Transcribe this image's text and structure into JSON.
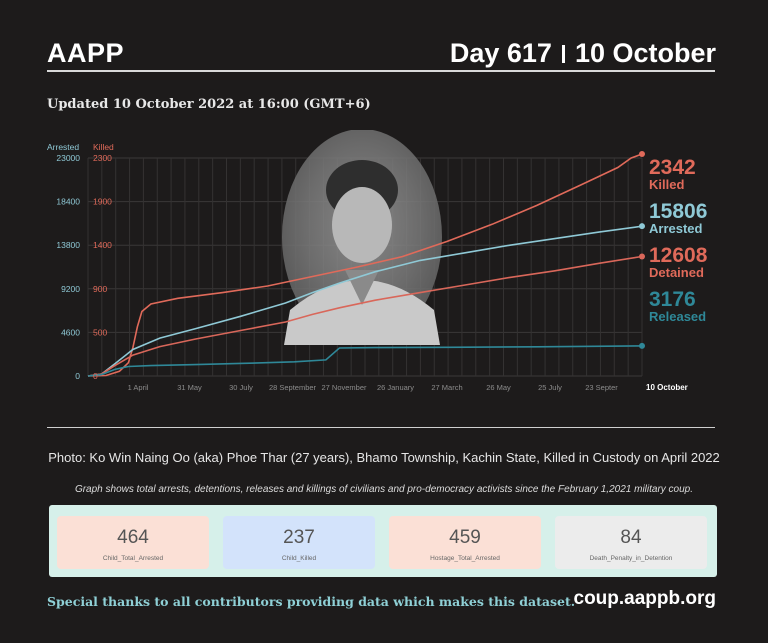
{
  "header": {
    "brand": "AAPP",
    "day": "Day 617",
    "date": "10 October"
  },
  "updated": "Updated 10 October 2022 at 16:00 (GMT+6)",
  "photo_caption": "Photo: Ko Win Naing Oo (aka) Phoe Thar (27 years), Bhamo Township, Kachin State, Killed in Custody on April 2022",
  "graph_note": "Graph shows total arrests, detentions, releases and killings of civilians and pro-democracy activists since the February 1,2021 military coup.",
  "stats": [
    {
      "value": "464",
      "label": "Child_Total_Arrested",
      "color": "#fbe0d6"
    },
    {
      "value": "237",
      "label": "Child_Killed",
      "color": "#d3e3fb"
    },
    {
      "value": "459",
      "label": "Hostage_Total_Arrested",
      "color": "#fbe0d6"
    },
    {
      "value": "84",
      "label": "Death_Penalty_in_Detention",
      "color": "#ececec"
    }
  ],
  "footer": {
    "thanks": "Special thanks to all contributors providing data which makes this dataset.",
    "site": "coup.aappb.org"
  },
  "chart_data": {
    "type": "line",
    "left_axis": {
      "label": "Arrested",
      "ticks": [
        0,
        4600,
        9200,
        13800,
        18400,
        23000
      ],
      "range": [
        0,
        23000
      ],
      "color": "#8fc9d6"
    },
    "right_axis": {
      "label": "Killed",
      "ticks": [
        0,
        500,
        900,
        1400,
        1900,
        2300
      ],
      "range": [
        0,
        2300
      ],
      "color": "#e06a5a"
    },
    "x_ticks": [
      "1 April",
      "31 May",
      "30 July",
      "28 September",
      "27 November",
      "26 January",
      "27 March",
      "26 May",
      "25 July",
      "23 Septer",
      "10 October"
    ],
    "x_range": [
      0,
      617
    ],
    "grid": true,
    "series": [
      {
        "name": "Killed",
        "axis": "right",
        "color": "#e06a5a",
        "final": "2342",
        "points": [
          [
            0,
            0
          ],
          [
            20,
            5
          ],
          [
            35,
            50
          ],
          [
            45,
            140
          ],
          [
            50,
            300
          ],
          [
            55,
            520
          ],
          [
            60,
            680
          ],
          [
            70,
            760
          ],
          [
            100,
            820
          ],
          [
            150,
            880
          ],
          [
            200,
            950
          ],
          [
            250,
            1050
          ],
          [
            300,
            1150
          ],
          [
            350,
            1260
          ],
          [
            400,
            1420
          ],
          [
            450,
            1600
          ],
          [
            500,
            1800
          ],
          [
            550,
            2020
          ],
          [
            590,
            2200
          ],
          [
            605,
            2300
          ],
          [
            617,
            2342
          ]
        ]
      },
      {
        "name": "Arrested",
        "axis": "left",
        "color": "#8fc9d6",
        "final": "15806",
        "points": [
          [
            0,
            0
          ],
          [
            15,
            200
          ],
          [
            30,
            1300
          ],
          [
            50,
            2800
          ],
          [
            80,
            4000
          ],
          [
            120,
            5000
          ],
          [
            170,
            6300
          ],
          [
            220,
            7700
          ],
          [
            250,
            8800
          ],
          [
            280,
            9800
          ],
          [
            320,
            11000
          ],
          [
            370,
            12200
          ],
          [
            420,
            13000
          ],
          [
            470,
            13800
          ],
          [
            520,
            14500
          ],
          [
            570,
            15200
          ],
          [
            617,
            15806
          ]
        ]
      },
      {
        "name": "Detained",
        "axis": "left",
        "color": "#d9675a",
        "final": "12608",
        "points": [
          [
            0,
            0
          ],
          [
            15,
            200
          ],
          [
            30,
            1100
          ],
          [
            50,
            2200
          ],
          [
            80,
            3100
          ],
          [
            120,
            3900
          ],
          [
            170,
            4800
          ],
          [
            220,
            5700
          ],
          [
            250,
            6500
          ],
          [
            280,
            7200
          ],
          [
            320,
            8000
          ],
          [
            370,
            8800
          ],
          [
            420,
            9600
          ],
          [
            470,
            10400
          ],
          [
            520,
            11100
          ],
          [
            570,
            11900
          ],
          [
            617,
            12608
          ]
        ]
      },
      {
        "name": "Released",
        "axis": "left",
        "color": "#2f8898",
        "final": "3176",
        "points": [
          [
            0,
            0
          ],
          [
            15,
            150
          ],
          [
            30,
            700
          ],
          [
            45,
            1000
          ],
          [
            70,
            1100
          ],
          [
            120,
            1200
          ],
          [
            180,
            1350
          ],
          [
            230,
            1500
          ],
          [
            265,
            1700
          ],
          [
            280,
            2950
          ],
          [
            320,
            3000
          ],
          [
            400,
            3030
          ],
          [
            500,
            3080
          ],
          [
            617,
            3176
          ]
        ]
      }
    ]
  }
}
